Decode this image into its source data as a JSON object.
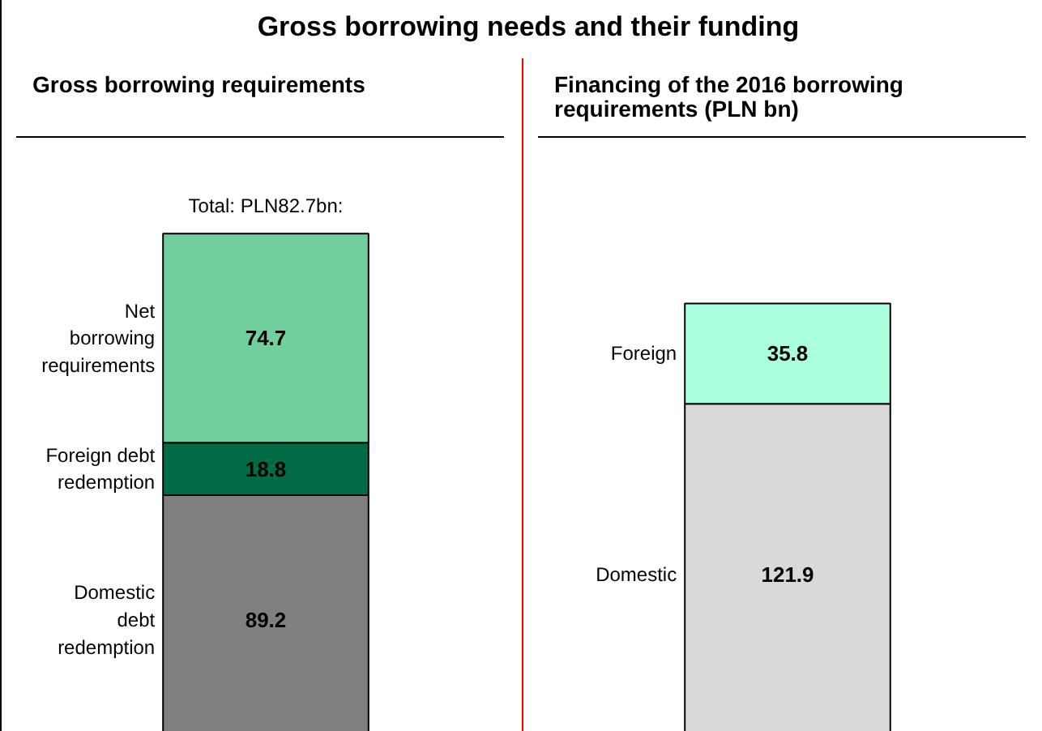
{
  "chart_data": [
    {
      "type": "bar",
      "title": "Gross borrowing needs and their funding",
      "subtitle": "Gross borrowing requirements",
      "categories": [
        null
      ],
      "stacked": true,
      "data_labels": true,
      "annotations": [
        "Total: PLN82.7bn:"
      ],
      "series": [
        {
          "name": "Domestic debt redemption",
          "color": "#808080",
          "values": [
            89.2
          ]
        },
        {
          "name": "Foreign debt redemption",
          "color": "#006b45",
          "values": [
            18.8
          ]
        },
        {
          "name": "Net borrowing requirements",
          "color": "#70cf9c",
          "values": [
            74.7
          ]
        }
      ]
    },
    {
      "type": "bar",
      "title": "Financing of the 2016 borrowing requirements (PLN bn)",
      "categories": [
        null
      ],
      "stacked": true,
      "data_labels": true,
      "series": [
        {
          "name": "Domestic",
          "color": "#d9d9d9",
          "values": [
            121.9
          ]
        },
        {
          "name": "Foreign",
          "color": "#aaffdd",
          "values": [
            35.8
          ]
        }
      ]
    }
  ]
}
